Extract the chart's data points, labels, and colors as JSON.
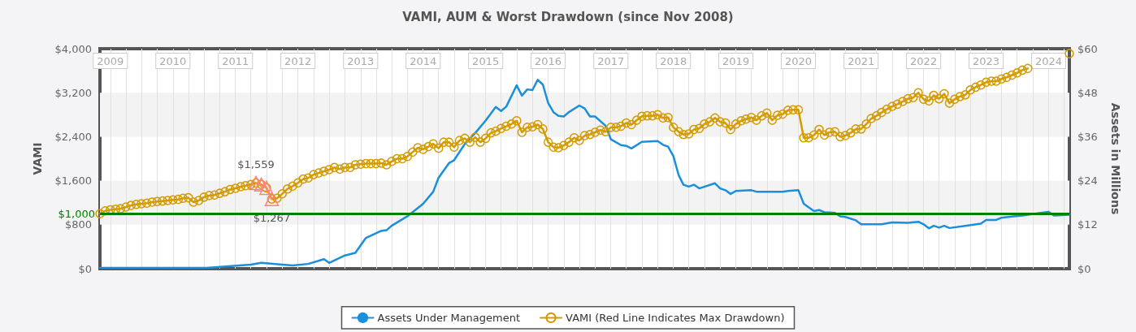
{
  "chart_data": {
    "type": "line",
    "title": "VAMI, AUM & Worst Drawdown (since Nov 2008)",
    "ylabel": "VAMI",
    "y2label": "Assets in Millions",
    "x": [
      "2008-11",
      "2008-12",
      "2009-01",
      "2009-02",
      "2009-03",
      "2009-04",
      "2009-05",
      "2009-06",
      "2009-07",
      "2009-08",
      "2009-09",
      "2009-10",
      "2009-11",
      "2009-12",
      "2010-01",
      "2010-02",
      "2010-03",
      "2010-04",
      "2010-05",
      "2010-06",
      "2010-07",
      "2010-08",
      "2010-09",
      "2010-10",
      "2010-11",
      "2010-12",
      "2011-01",
      "2011-02",
      "2011-03",
      "2011-04",
      "2011-05",
      "2011-06",
      "2011-07",
      "2011-08",
      "2011-09",
      "2011-10",
      "2011-11",
      "2011-12",
      "2012-01",
      "2012-02",
      "2012-03",
      "2012-04",
      "2012-05",
      "2012-06",
      "2012-07",
      "2012-08",
      "2012-09",
      "2012-10",
      "2012-11",
      "2012-12",
      "2013-01",
      "2013-02",
      "2013-03",
      "2013-04",
      "2013-05",
      "2013-06",
      "2013-07",
      "2013-08",
      "2013-09",
      "2013-10",
      "2013-11",
      "2013-12",
      "2014-01",
      "2014-02",
      "2014-03",
      "2014-04",
      "2014-05",
      "2014-06",
      "2014-07",
      "2014-08",
      "2014-09",
      "2014-10",
      "2014-11",
      "2014-12",
      "2015-01",
      "2015-02",
      "2015-03",
      "2015-04",
      "2015-05",
      "2015-06",
      "2015-07",
      "2015-08",
      "2015-09",
      "2015-10",
      "2015-11",
      "2015-12",
      "2016-01",
      "2016-02",
      "2016-03",
      "2016-04",
      "2016-05",
      "2016-06",
      "2016-07",
      "2016-08",
      "2016-09",
      "2016-10",
      "2016-11",
      "2016-12",
      "2017-01",
      "2017-02",
      "2017-03",
      "2017-04",
      "2017-05",
      "2017-06",
      "2017-07",
      "2017-08",
      "2017-09",
      "2017-10",
      "2017-11",
      "2017-12",
      "2018-01",
      "2018-02",
      "2018-03",
      "2018-04",
      "2018-05",
      "2018-06",
      "2018-07",
      "2018-08",
      "2018-09",
      "2018-10",
      "2018-11",
      "2018-12",
      "2019-01",
      "2019-02",
      "2019-03",
      "2019-04",
      "2019-05",
      "2019-06",
      "2019-07",
      "2019-08",
      "2019-09",
      "2019-10",
      "2019-11",
      "2019-12",
      "2020-01",
      "2020-02",
      "2020-03",
      "2020-04",
      "2020-05",
      "2020-06",
      "2020-07",
      "2020-08",
      "2020-09",
      "2020-10",
      "2020-11",
      "2020-12",
      "2021-01",
      "2021-02",
      "2021-03",
      "2021-04",
      "2021-05",
      "2021-06",
      "2021-07",
      "2021-08",
      "2021-09",
      "2021-10",
      "2021-11",
      "2021-12",
      "2022-01",
      "2022-02",
      "2022-03",
      "2022-04",
      "2022-05",
      "2022-06",
      "2022-07",
      "2022-08",
      "2022-09",
      "2022-10",
      "2022-11",
      "2022-12",
      "2023-01",
      "2023-02",
      "2023-03",
      "2023-04",
      "2023-05",
      "2023-06",
      "2023-07",
      "2023-08",
      "2023-09",
      "2023-10",
      "2023-11",
      "2023-12",
      "2024-01",
      "2024-02",
      "2024-03",
      "2024-04",
      "2024-05"
    ],
    "series": [
      {
        "name": "Assets Under Management",
        "color": "#1a8fdc",
        "axis": "y2",
        "marker": "none",
        "x": [
          "2008-11",
          "2010-07",
          "2011-04",
          "2011-06",
          "2011-10",
          "2011-12",
          "2012-03",
          "2012-06",
          "2012-07",
          "2012-10",
          "2012-12",
          "2013-02",
          "2013-05",
          "2013-06",
          "2013-07",
          "2013-10",
          "2014-01",
          "2014-03",
          "2014-04",
          "2014-06",
          "2014-07",
          "2014-09",
          "2014-11",
          "2015-01",
          "2015-03",
          "2015-04",
          "2015-05",
          "2015-07",
          "2015-08",
          "2015-09",
          "2015-10",
          "2015-11",
          "2015-12",
          "2016-01",
          "2016-02",
          "2016-03",
          "2016-04",
          "2016-05",
          "2016-07",
          "2016-08",
          "2016-09",
          "2016-10",
          "2016-12",
          "2017-01",
          "2017-03",
          "2017-04",
          "2017-05",
          "2017-07",
          "2017-10",
          "2017-11",
          "2017-12",
          "2018-01",
          "2018-02",
          "2018-03",
          "2018-04",
          "2018-05",
          "2018-06",
          "2018-09",
          "2018-10",
          "2018-11",
          "2018-12",
          "2019-01",
          "2019-04",
          "2019-05",
          "2019-10",
          "2019-11",
          "2020-01",
          "2020-02",
          "2020-04",
          "2020-05",
          "2020-06",
          "2020-08",
          "2020-09",
          "2020-10",
          "2020-12",
          "2021-01",
          "2021-05",
          "2021-07",
          "2021-10",
          "2021-12",
          "2022-01",
          "2022-02",
          "2022-03",
          "2022-04",
          "2022-05",
          "2022-06",
          "2022-09",
          "2022-12",
          "2023-01",
          "2023-03",
          "2023-04",
          "2023-06",
          "2023-08",
          "2024-01",
          "2024-02",
          "2024-05"
        ],
        "values": [
          0.2,
          0.2,
          1.1,
          1.6,
          1.1,
          0.9,
          1.3,
          2.6,
          1.6,
          3.6,
          4.3,
          8.4,
          10.3,
          10.5,
          11.7,
          14.3,
          17.7,
          21.0,
          24.8,
          28.8,
          29.6,
          34.0,
          37.0,
          40.4,
          44.1,
          43.0,
          44.2,
          50.0,
          47.2,
          48.9,
          48.7,
          51.5,
          50.2,
          45.2,
          42.7,
          41.7,
          41.5,
          42.7,
          44.5,
          43.7,
          41.5,
          41.5,
          39.0,
          35.3,
          33.7,
          33.5,
          32.8,
          34.6,
          34.8,
          33.8,
          33.3,
          30.7,
          25.5,
          22.9,
          22.4,
          22.9,
          21.9,
          23.3,
          21.9,
          21.4,
          20.4,
          21.2,
          21.4,
          21.0,
          21.0,
          21.2,
          21.4,
          17.7,
          15.7,
          16.0,
          15.4,
          15.2,
          14.3,
          14.1,
          13.2,
          12.1,
          12.1,
          12.6,
          12.5,
          12.8,
          12.1,
          11.0,
          11.7,
          11.2,
          11.7,
          11.1,
          11.7,
          12.3,
          13.3,
          13.3,
          13.9,
          14.2,
          14.5,
          15.5,
          14.5,
          14.7
        ]
      },
      {
        "name": "VAMI (Red Line Indicates Max Drawdown)",
        "color": "#d49b00",
        "marker": "circle",
        "values": [
          1000,
          1050,
          1070,
          1080,
          1090,
          1120,
          1150,
          1170,
          1180,
          1190,
          1210,
          1220,
          1230,
          1240,
          1250,
          1260,
          1280,
          1290,
          1210,
          1240,
          1300,
          1330,
          1340,
          1370,
          1400,
          1440,
          1460,
          1490,
          1510,
          1530,
          1559,
          1530,
          1470,
          1267,
          1280,
          1360,
          1450,
          1500,
          1560,
          1630,
          1650,
          1710,
          1740,
          1770,
          1800,
          1840,
          1810,
          1840,
          1840,
          1890,
          1900,
          1910,
          1910,
          1910,
          1920,
          1890,
          1950,
          2000,
          2000,
          2040,
          2120,
          2200,
          2170,
          2220,
          2270,
          2190,
          2300,
          2300,
          2210,
          2330,
          2370,
          2300,
          2390,
          2300,
          2370,
          2470,
          2500,
          2550,
          2590,
          2630,
          2690,
          2480,
          2570,
          2580,
          2620,
          2540,
          2300,
          2210,
          2200,
          2240,
          2300,
          2380,
          2330,
          2420,
          2440,
          2480,
          2520,
          2490,
          2570,
          2570,
          2590,
          2650,
          2620,
          2700,
          2770,
          2780,
          2780,
          2800,
          2740,
          2750,
          2570,
          2490,
          2440,
          2450,
          2530,
          2550,
          2630,
          2670,
          2740,
          2670,
          2650,
          2530,
          2630,
          2690,
          2720,
          2750,
          2700,
          2780,
          2830,
          2700,
          2790,
          2810,
          2880,
          2890,
          2890,
          2380,
          2380,
          2430,
          2530,
          2430,
          2480,
          2490,
          2400,
          2420,
          2470,
          2540,
          2540,
          2630,
          2730,
          2780,
          2840,
          2900,
          2950,
          2990,
          3040,
          3090,
          3110,
          3200,
          3080,
          3050,
          3150,
          3090,
          3180,
          3010,
          3080,
          3130,
          3160,
          3250,
          3300,
          3340,
          3390,
          3410,
          3410,
          3450,
          3480,
          3520,
          3560,
          3610,
          3640,
          null,
          null,
          null,
          null,
          null,
          null,
          null,
          3910
        ]
      },
      {
        "color": "#ff8080",
        "marker": "triangle",
        "x": [
          "2011-05",
          "2011-06",
          "2011-07",
          "2011-08"
        ],
        "values": [
          1559,
          1530,
          1470,
          1267
        ],
        "value_labels": [
          "$1,559",
          null,
          null,
          "$1,267"
        ]
      }
    ],
    "xlim": [
      "2008-11",
      "2024-05"
    ],
    "xticks": [
      "2009",
      {
        "value": "2009-04",
        "label": null
      },
      {
        "value": "2009-07",
        "label": null
      },
      {
        "value": "2009-10",
        "label": null
      },
      "2010",
      {
        "value": "2010-04",
        "label": null
      },
      {
        "value": "2010-07",
        "label": null
      },
      {
        "value": "2010-10",
        "label": null
      },
      "2011",
      {
        "value": "2011-04",
        "label": null
      },
      {
        "value": "2011-07",
        "label": null
      },
      {
        "value": "2011-10",
        "label": null
      },
      "2012",
      {
        "value": "2012-04",
        "label": null
      },
      {
        "value": "2012-07",
        "label": null
      },
      {
        "value": "2012-10",
        "label": null
      },
      "2013",
      {
        "value": "2013-04",
        "label": null
      },
      {
        "value": "2013-07",
        "label": null
      },
      {
        "value": "2013-10",
        "label": null
      },
      "2014",
      {
        "value": "2014-04",
        "label": null
      },
      {
        "value": "2014-07",
        "label": null
      },
      {
        "value": "2014-10",
        "label": null
      },
      "2015",
      {
        "value": "2015-04",
        "label": null
      },
      {
        "value": "2015-07",
        "label": null
      },
      {
        "value": "2015-10",
        "label": null
      },
      "2016",
      {
        "value": "2016-04",
        "label": null
      },
      {
        "value": "2016-07",
        "label": null
      },
      {
        "value": "2016-10",
        "label": null
      },
      "2017",
      {
        "value": "2017-04",
        "label": null
      },
      {
        "value": "2017-07",
        "label": null
      },
      {
        "value": "2017-10",
        "label": null
      },
      "2018",
      {
        "value": "2018-04",
        "label": null
      },
      {
        "value": "2018-07",
        "label": null
      },
      {
        "value": "2018-10",
        "label": null
      },
      "2019",
      {
        "value": "2019-04",
        "label": null
      },
      {
        "value": "2019-07",
        "label": null
      },
      {
        "value": "2019-10",
        "label": null
      },
      "2020",
      {
        "value": "2020-04",
        "label": null
      },
      {
        "value": "2020-07",
        "label": null
      },
      {
        "value": "2020-10",
        "label": null
      },
      "2021",
      {
        "value": "2021-04",
        "label": null
      },
      {
        "value": "2021-07",
        "label": null
      },
      {
        "value": "2021-10",
        "label": null
      },
      "2022",
      {
        "value": "2022-04",
        "label": null
      },
      {
        "value": "2022-07",
        "label": null
      },
      {
        "value": "2022-10",
        "label": null
      },
      "2023",
      {
        "value": "2023-04",
        "label": null
      },
      {
        "value": "2023-07",
        "label": null
      },
      {
        "value": "2023-10",
        "label": null
      },
      "2024",
      {
        "value": "2024-04",
        "label": null
      }
    ],
    "ylim": [
      0,
      4000
    ],
    "yticks": [
      {
        "value": 0,
        "label": "$0"
      },
      {
        "value": 800,
        "label": "$800"
      },
      {
        "value": 1600,
        "label": "$1,600"
      },
      {
        "value": 2400,
        "label": "$2,400"
      },
      {
        "value": 3200,
        "label": "$3,200"
      },
      {
        "value": 4000,
        "label": "$4,000"
      }
    ],
    "y2lim": [
      0,
      60
    ],
    "y2ticks": [
      {
        "value": 0,
        "label": "$0"
      },
      {
        "value": 12,
        "label": "$12"
      },
      {
        "value": 24,
        "label": "$24"
      },
      {
        "value": 36,
        "label": "$36"
      },
      {
        "value": 48,
        "label": "$48"
      },
      {
        "value": 60,
        "label": "$60"
      }
    ],
    "ref_lines": [
      {
        "axis": "y",
        "value": 1000,
        "label": "$1,000",
        "color": "#008000"
      }
    ],
    "grid": true,
    "legend": "bottom",
    "line_style": "solid"
  }
}
